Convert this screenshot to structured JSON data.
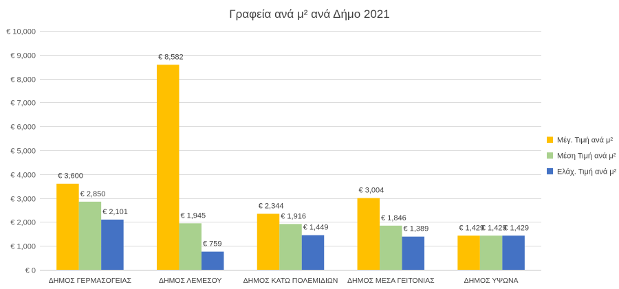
{
  "chart_data": {
    "type": "bar",
    "title": "Γραφεία ανά μ² ανά Δήμο 2021",
    "categories": [
      "ΔΗΜΟΣ ΓΕΡΜΑΣΟΓΕΙΑΣ",
      "ΔΗΜΟΣ ΛΕΜΕΣΟΥ",
      "ΔΗΜΟΣ ΚΑΤΩ ΠΟΛΕΜΙΔΙΩΝ",
      "ΔΗΜΟΣ ΜΕΣΑ ΓΕΙΤΟΝΙΑΣ",
      "ΔΗΜΟΣ ΥΨΩΝΑ"
    ],
    "series": [
      {
        "name": "Μέγ. Τιμή ανά μ²",
        "color": "#FFC000",
        "values": [
          3600,
          8582,
          2344,
          3004,
          1429
        ],
        "labels": [
          "€ 3,600",
          "€ 8,582",
          "€ 2,344",
          "€ 3,004",
          "€ 1,429"
        ]
      },
      {
        "name": "Μέση Τιμή ανά μ²",
        "color": "#A9D18E",
        "values": [
          2850,
          1945,
          1916,
          1846,
          1429
        ],
        "labels": [
          "€ 2,850",
          "€ 1,945",
          "€ 1,916",
          "€ 1,846",
          "€ 1,429"
        ]
      },
      {
        "name": "Ελάχ. Τιμή ανά μ²",
        "color": "#4472C4",
        "values": [
          2101,
          759,
          1449,
          1389,
          1429
        ],
        "labels": [
          "€ 2,101",
          "€ 759",
          "€ 1,449",
          "€ 1,389",
          "€ 1,429"
        ]
      }
    ],
    "ylim": [
      0,
      10000
    ],
    "yticks": [
      0,
      1000,
      2000,
      3000,
      4000,
      5000,
      6000,
      7000,
      8000,
      9000,
      10000
    ],
    "ytick_labels": [
      "€ 0",
      "€ 1,000",
      "€ 2,000",
      "€ 3,000",
      "€ 4,000",
      "€ 5,000",
      "€ 6,000",
      "€ 7,000",
      "€ 8,000",
      "€ 9,000",
      "€ 10,000"
    ],
    "grid": true,
    "legend_position": "right",
    "xlabel": "",
    "ylabel": ""
  }
}
